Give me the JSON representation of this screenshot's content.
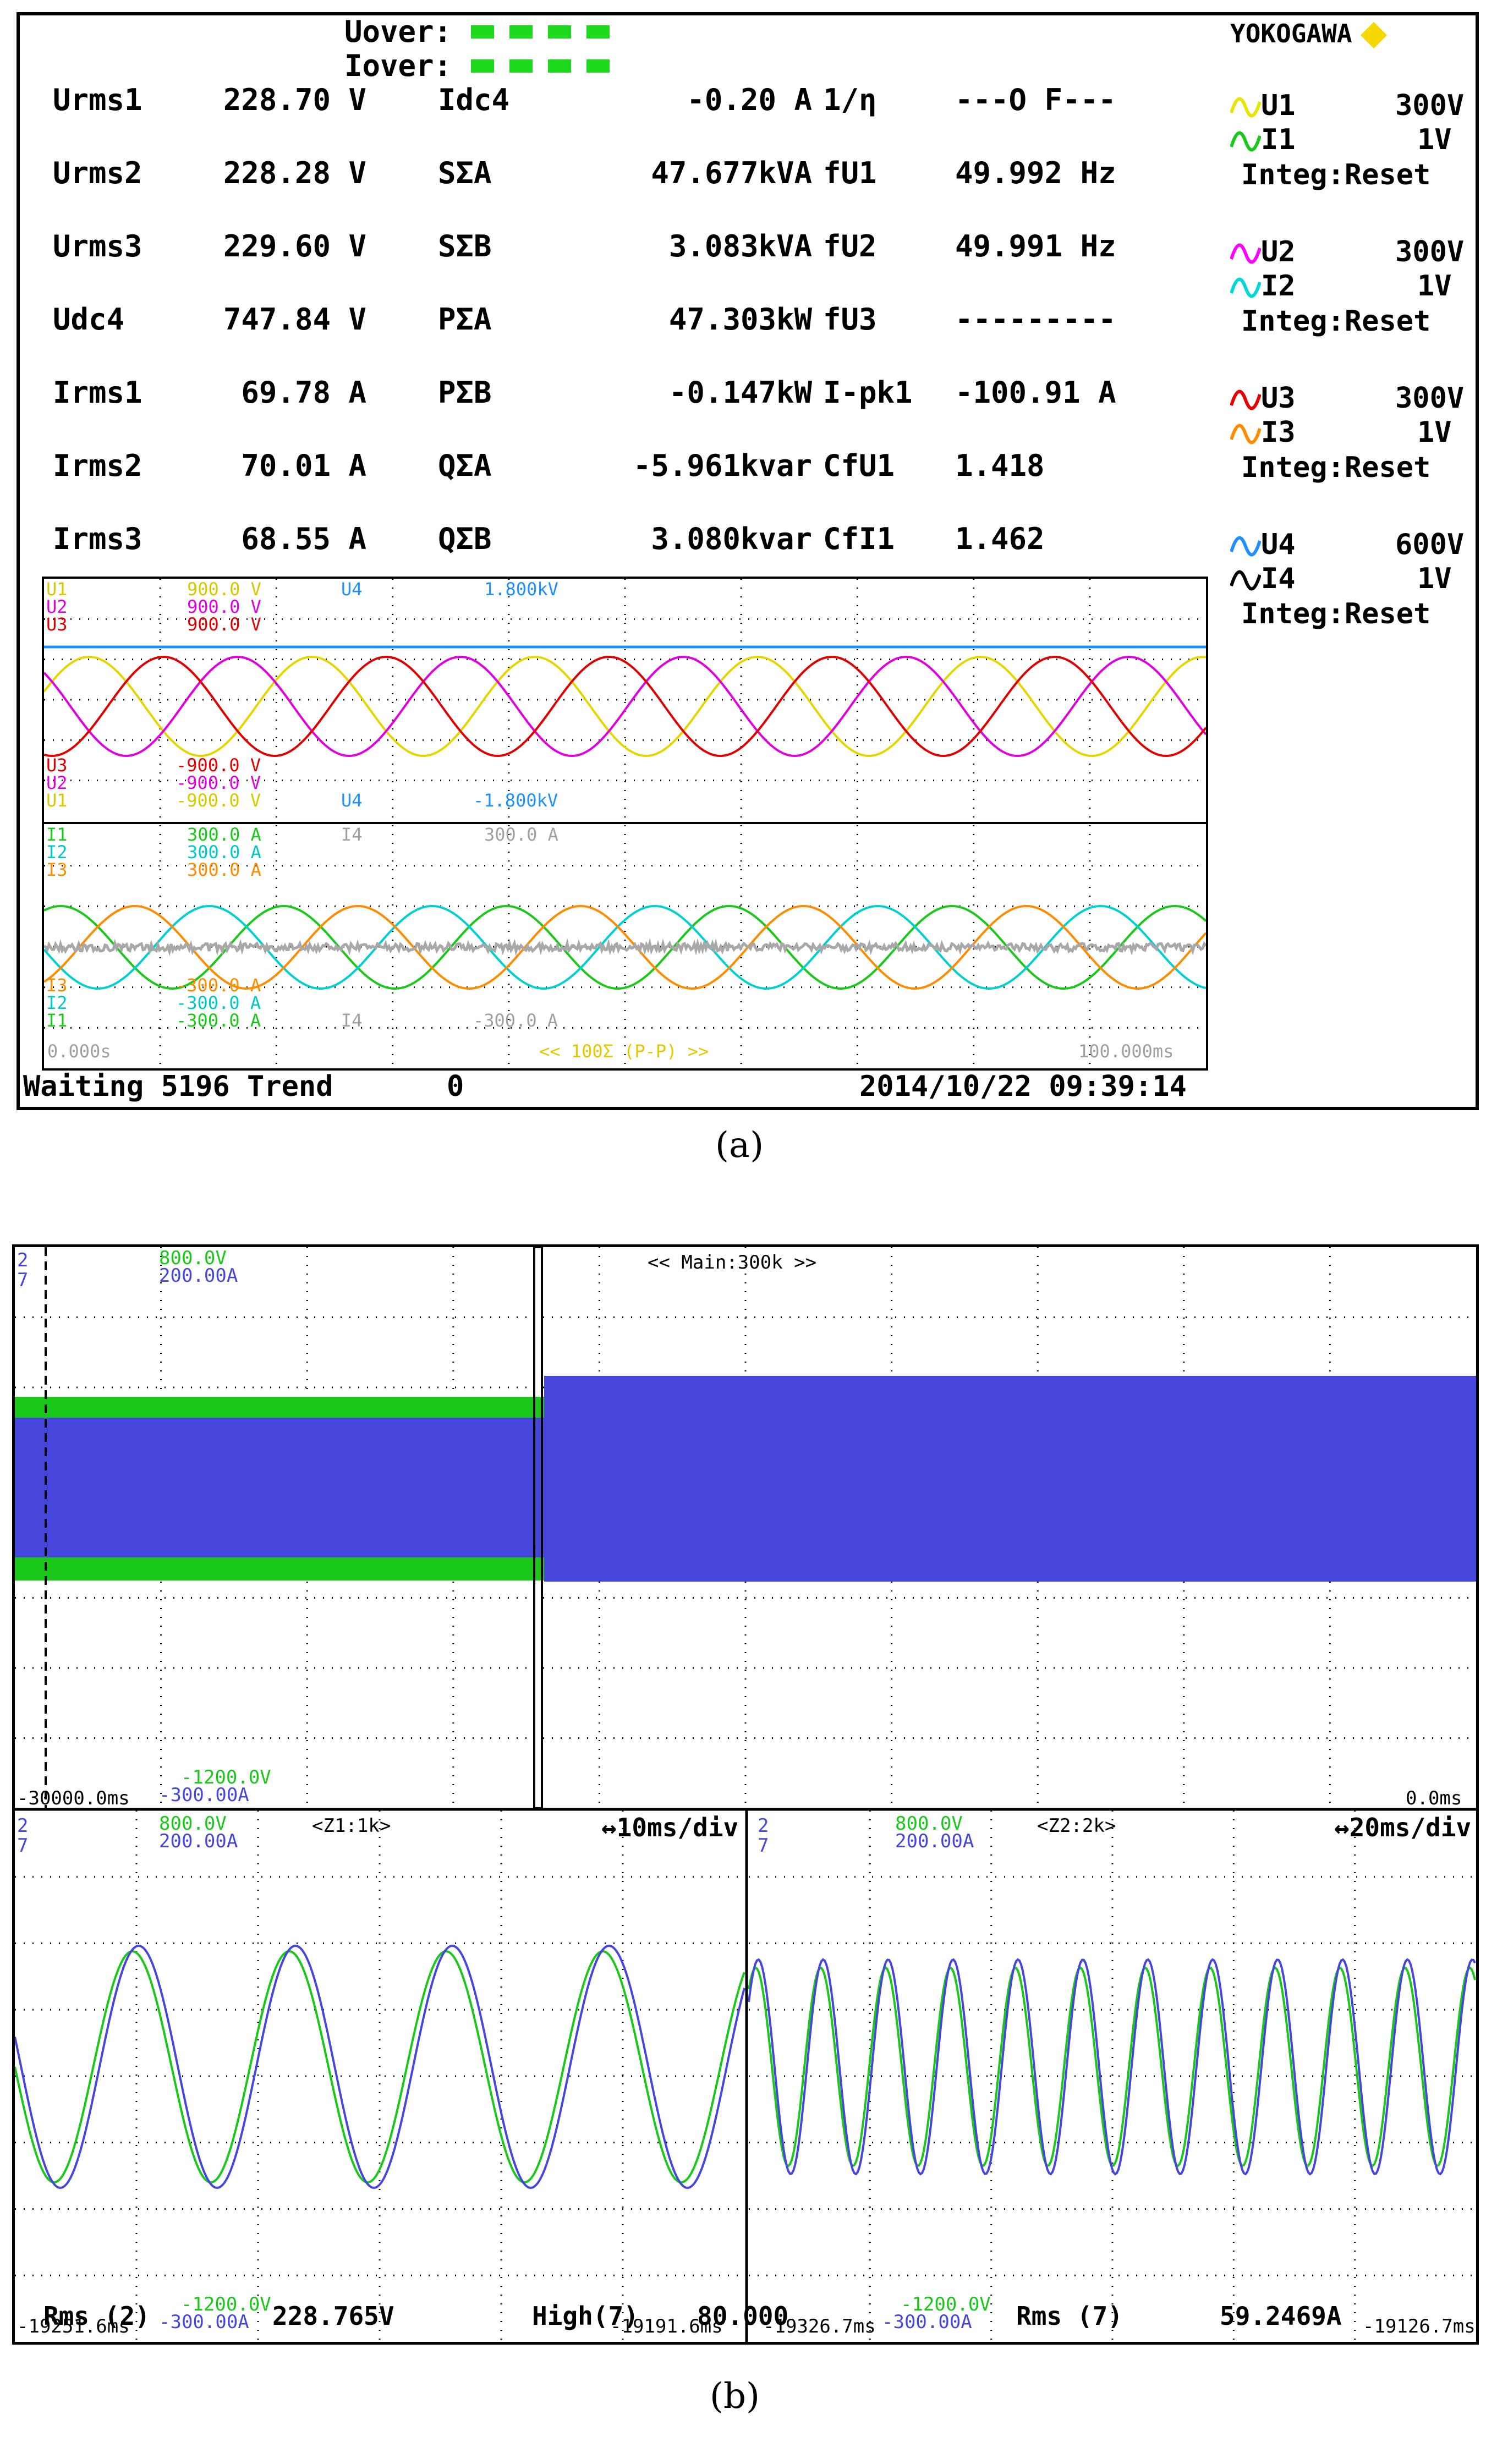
{
  "panel_a": {
    "over": [
      {
        "label": "Uover:"
      },
      {
        "label": "Iover:"
      }
    ],
    "brand": "YOKOGAWA",
    "measurements": [
      [
        {
          "label": "Urms1",
          "value": "228.70 V"
        },
        {
          "label": "Idc4",
          "value": "-0.20 A"
        },
        {
          "label": "1/η",
          "value": "---O F---"
        }
      ],
      [
        {
          "label": "Urms2",
          "value": "228.28 V"
        },
        {
          "label": "SΣA",
          "value": "47.677kVA"
        },
        {
          "label": "fU1",
          "value": "49.992 Hz"
        }
      ],
      [
        {
          "label": "Urms3",
          "value": "229.60 V"
        },
        {
          "label": "SΣB",
          "value": "3.083kVA"
        },
        {
          "label": "fU2",
          "value": "49.991 Hz"
        }
      ],
      [
        {
          "label": "Udc4",
          "value": "747.84 V"
        },
        {
          "label": "PΣA",
          "value": "47.303kW"
        },
        {
          "label": "fU3",
          "value": "---------"
        }
      ],
      [
        {
          "label": "Irms1",
          "value": "69.78 A"
        },
        {
          "label": "PΣB",
          "value": "-0.147kW"
        },
        {
          "label": "I-pk1",
          "value": "-100.91 A"
        }
      ],
      [
        {
          "label": "Irms2",
          "value": "70.01 A"
        },
        {
          "label": "QΣA",
          "value": "-5.961kvar"
        },
        {
          "label": "CfU1",
          "value": "1.418"
        }
      ],
      [
        {
          "label": "Irms3",
          "value": "68.55 A"
        },
        {
          "label": "QΣB",
          "value": "3.080kvar"
        },
        {
          "label": "CfI1",
          "value": "1.462"
        }
      ]
    ],
    "channels": [
      {
        "u": "U1",
        "u_range": "300V",
        "i": "I1",
        "i_range": "1V",
        "integ": "Integ:Reset",
        "u_color": "#e6e600",
        "i_color": "#19c819"
      },
      {
        "u": "U2",
        "u_range": "300V",
        "i": "I2",
        "i_range": "1V",
        "integ": "Integ:Reset",
        "u_color": "#ff00ff",
        "i_color": "#00d8d8"
      },
      {
        "u": "U3",
        "u_range": "300V",
        "i": "I3",
        "i_range": "1V",
        "integ": "Integ:Reset",
        "u_color": "#e60000",
        "i_color": "#ff8c00"
      },
      {
        "u": "U4",
        "u_range": "600V",
        "i": "I4",
        "i_range": "1V",
        "integ": "Integ:Reset",
        "u_color": "#1e90ff",
        "i_color": "#000000"
      }
    ],
    "scope": {
      "upper_top": [
        {
          "ch": "U1",
          "val": "900.0 V",
          "color": "#d8c800"
        },
        {
          "ch": "U2",
          "val": "900.0 V",
          "color": "#e000e0"
        },
        {
          "ch": "U3",
          "val": "900.0 V",
          "color": "#e00000"
        }
      ],
      "upper_top_u4": {
        "ch": "U4",
        "val": "1.800kV",
        "color": "#1e90ff"
      },
      "upper_bottom": [
        {
          "ch": "U3",
          "val": "-900.0 V",
          "color": "#e00000"
        },
        {
          "ch": "U2",
          "val": "-900.0 V",
          "color": "#e000e0"
        },
        {
          "ch": "U1",
          "val": "-900.0 V",
          "color": "#d8c800"
        }
      ],
      "upper_bottom_u4": {
        "ch": "U4",
        "val": "-1.800kV",
        "color": "#1e90ff"
      },
      "lower_top": [
        {
          "ch": "I1",
          "val": "300.0 A",
          "color": "#19c819"
        },
        {
          "ch": "I2",
          "val": "300.0 A",
          "color": "#00c8c8"
        },
        {
          "ch": "I3",
          "val": "300.0 A",
          "color": "#ff8c00"
        }
      ],
      "lower_top_i4": {
        "ch": "I4",
        "val": "300.0 A",
        "color": "#a0a0a0"
      },
      "lower_bottom": [
        {
          "ch": "I3",
          "val": "-300.0 A",
          "color": "#ff8c00"
        },
        {
          "ch": "I2",
          "val": "-300.0 A",
          "color": "#00c8c8"
        },
        {
          "ch": "I1",
          "val": "-300.0 A",
          "color": "#19c819"
        }
      ],
      "lower_bottom_i4": {
        "ch": "I4",
        "val": "-300.0 A",
        "color": "#a0a0a0"
      },
      "t_start": "0.000s",
      "t_mid": "<< 100Σ (P-P) >>",
      "t_end": "100.000ms"
    },
    "status": {
      "state": "Waiting 5196 Trend",
      "count": "0",
      "datetime": "2014/10/22 09:39:14"
    },
    "caption": "(a)"
  },
  "panel_b": {
    "main": {
      "ch": "2\n7",
      "top_v": "800.0V",
      "top_a": "200.00A",
      "title": "<< Main:300k >>",
      "bot_v": "-1200.0V",
      "bot_a": "-300.00A",
      "t_start": "-30000.0ms",
      "t_end": "0.0ms"
    },
    "zoom1": {
      "ch": "2\n7",
      "top_v": "800.0V",
      "top_a": "200.00A",
      "title": "<Z1:1k>",
      "div": "↔10ms/div",
      "bot_v": "-1200.0V",
      "bot_a": "-300.00A",
      "t_start": "-19251.6ms",
      "t_end": "-19191.6ms",
      "meas1": "Rms (2)",
      "meas1_val": "228.765V",
      "meas2": "High(7)",
      "meas2_val": "80.000"
    },
    "zoom2": {
      "ch": "2\n7",
      "top_v": "800.0V",
      "top_a": "200.00A",
      "title": "<Z2:2k>",
      "div": "↔20ms/div",
      "bot_v": "-1200.0V",
      "bot_a": "-300.00A",
      "t_start": "-19326.7ms",
      "t_end": "-19126.7ms",
      "meas": "Rms (7)",
      "meas_val": "59.2469A"
    },
    "colors": {
      "voltage": "#19c819",
      "current": "#4646dc"
    },
    "caption": "(b)"
  }
}
